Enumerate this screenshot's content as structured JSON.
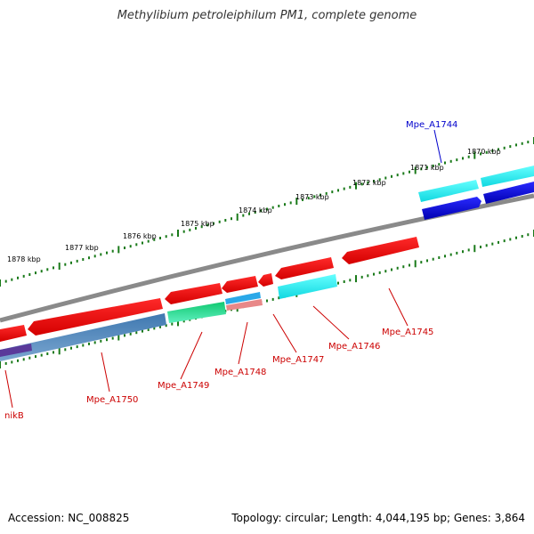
{
  "title": "Methylibium petroleiphilum PM1, complete genome",
  "footer": {
    "accession": "Accession: NC_008825",
    "topology": "Topology: circular; Length: 4,044,195 bp; Genes: 3,864"
  },
  "ruler_labels": [
    "1870 kbp",
    "1871 kbp",
    "1872 kbp",
    "1873 kbp",
    "1874 kbp",
    "1875 kbp",
    "1876 kbp",
    "1877 kbp",
    "1878 kbp"
  ],
  "gene_labels": {
    "mpe_a1744": "Mpe_A1744",
    "mpe_a1745": "Mpe_A1745",
    "mpe_a1746": "Mpe_A1746",
    "mpe_a1747": "Mpe_A1747",
    "mpe_a1748": "Mpe_A1748",
    "mpe_a1749": "Mpe_A1749",
    "mpe_a1750": "Mpe_A1750",
    "nikb": "nikB"
  },
  "colors": {
    "backbone": "#7a7a7a",
    "tick": "#1a7a1a",
    "forward_gene": "#e00000",
    "reverse_gene": "#5a8fc0",
    "cyan_gene": "#30f0f0",
    "blue_gene": "#0000dd",
    "green_gene": "#20d890",
    "label_red": "#cc0000",
    "label_blue": "#0000cc"
  }
}
